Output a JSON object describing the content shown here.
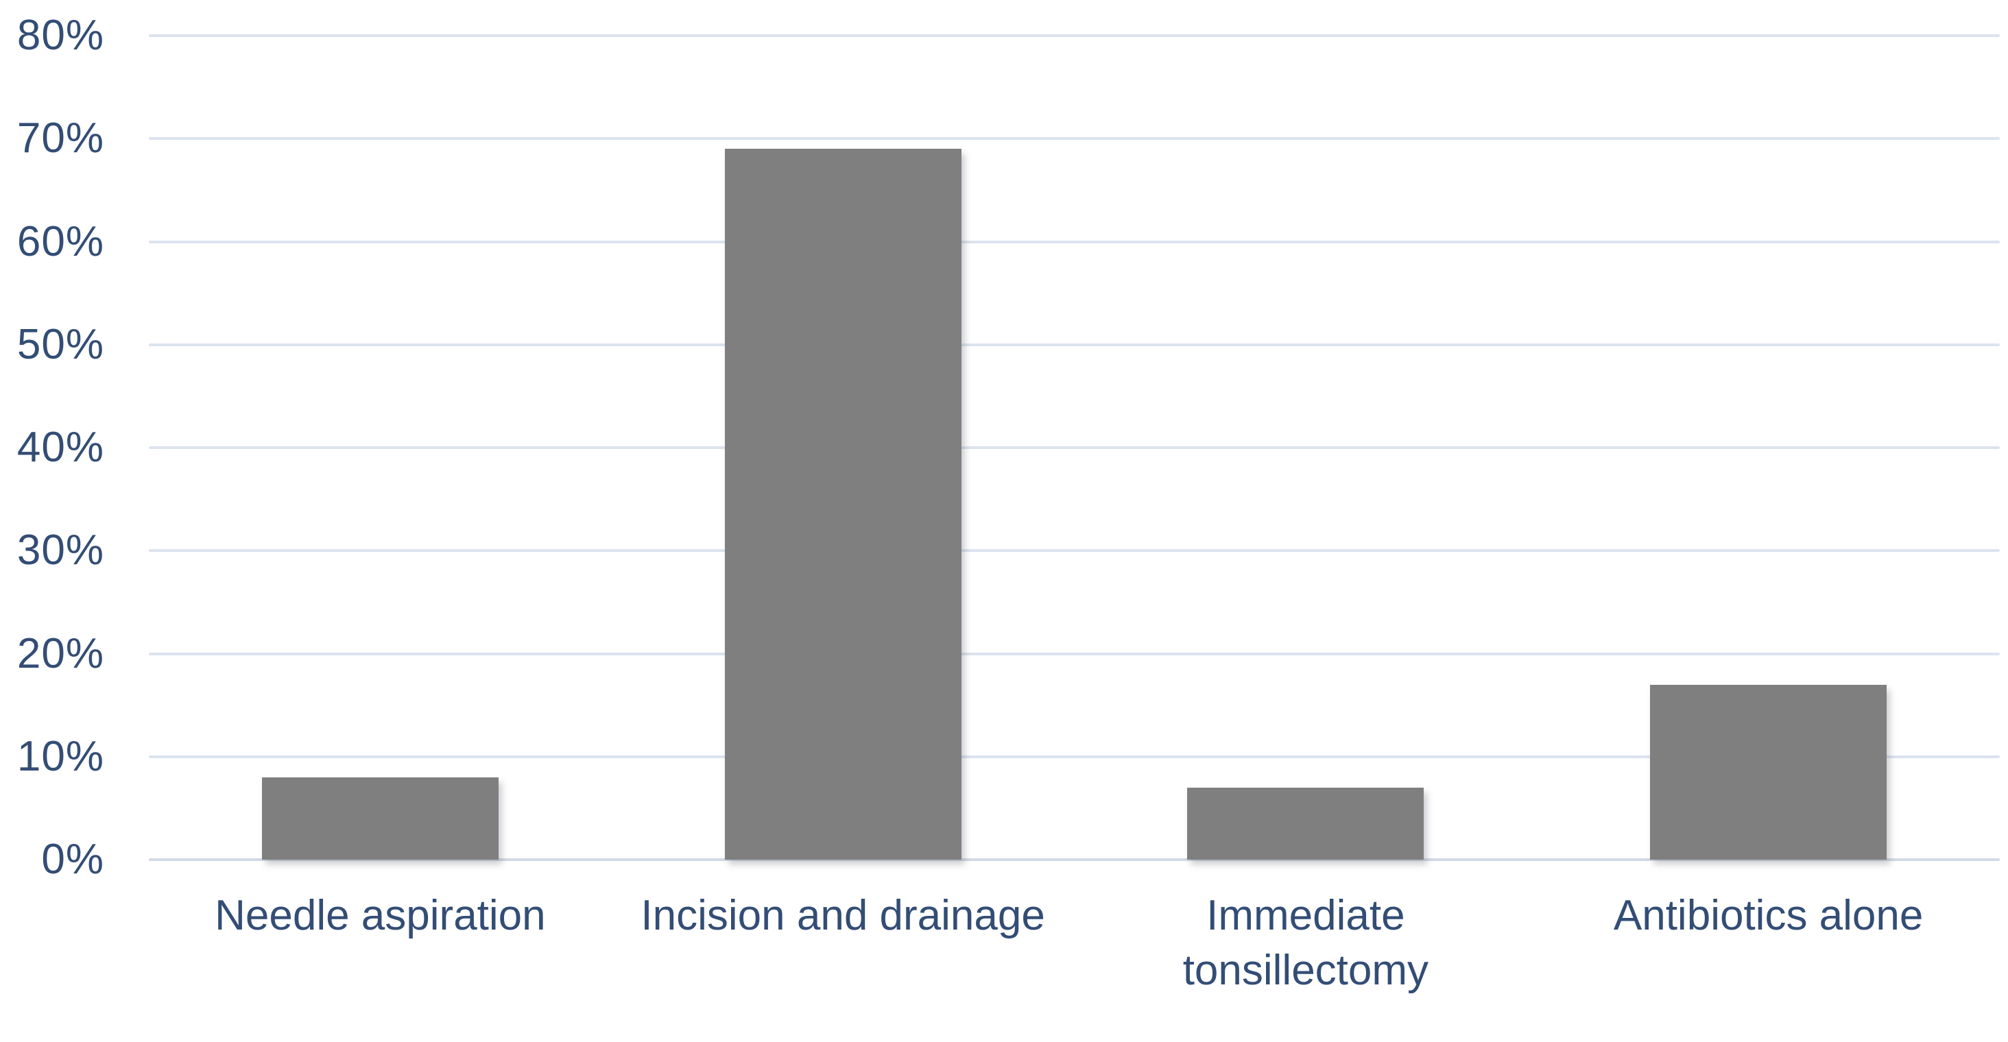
{
  "chart_data": {
    "type": "bar",
    "title": "",
    "xlabel": "",
    "ylabel": "",
    "categories": [
      "Needle aspiration",
      "Incision and drainage",
      "Immediate tonsillectomy",
      "Antibiotics alone"
    ],
    "category_display_lines": [
      "Needle aspiration",
      "Incision and drainage",
      "Immediate\ntonsillectomy",
      "Antibiotics alone"
    ],
    "values": [
      8,
      69,
      7,
      17
    ],
    "value_unit": "%",
    "ylim": [
      0,
      80
    ],
    "yticks": [
      0,
      10,
      20,
      30,
      40,
      50,
      60,
      70,
      80
    ],
    "ytick_labels": [
      "0%",
      "10%",
      "20%",
      "30%",
      "40%",
      "50%",
      "60%",
      "70%",
      "80%"
    ],
    "grid": true,
    "legend": false,
    "colors": {
      "bar": "#7f7f7f",
      "gridline": "#dce3ef",
      "axis_line": "#d2dae8",
      "label_text": "#334d75",
      "background": "#ffffff"
    }
  }
}
